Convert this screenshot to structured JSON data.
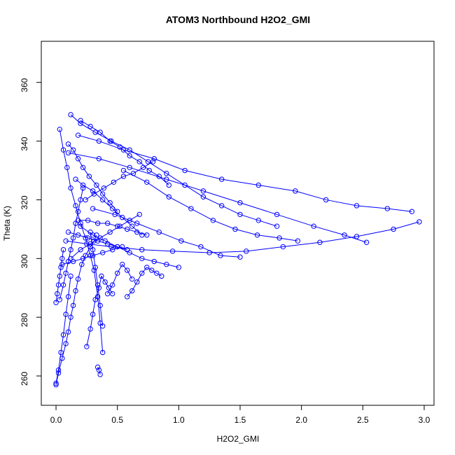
{
  "chart_data": {
    "type": "scatter",
    "title": "ATOM3 Northbound H2O2_GMI",
    "xlabel": "H2O2_GMI",
    "ylabel": "Theta (K)",
    "xlim": [
      -0.12,
      3.08
    ],
    "ylim": [
      250,
      374
    ],
    "x_ticks": [
      0.0,
      0.5,
      1.0,
      1.5,
      2.0,
      2.5,
      3.0
    ],
    "x_tick_labels": [
      "0.0",
      "0.5",
      "1.0",
      "1.5",
      "2.0",
      "2.5",
      "3.0"
    ],
    "y_ticks": [
      260,
      280,
      300,
      320,
      340,
      360
    ],
    "y_tick_labels": [
      "260",
      "280",
      "300",
      "320",
      "340",
      "360"
    ],
    "grid": false,
    "legend": "none",
    "colors": {
      "series": "#0000ff",
      "axes": "#000000",
      "background": "#ffffff"
    },
    "series": [
      {
        "x": [
          0.0,
          0.02,
          0.05,
          0.08,
          0.1,
          0.12,
          0.14,
          0.16,
          0.18,
          0.21,
          0.24,
          0.28,
          0.31,
          0.33
        ],
        "y": [
          257.0,
          261.0,
          266.0,
          271.0,
          275.0,
          280.0,
          284.0,
          289.0,
          293.0,
          298.0,
          301.0,
          304.0,
          306.0,
          308.0
        ]
      },
      {
        "x": [
          0.03,
          0.06,
          0.09,
          0.12,
          0.16,
          0.2,
          0.24,
          0.28,
          0.31,
          0.34,
          0.36,
          0.38
        ],
        "y": [
          344.0,
          337.0,
          331.0,
          324.0,
          318.0,
          312.0,
          307.0,
          301.0,
          296.0,
          287.0,
          278.0,
          268.0
        ]
      },
      {
        "x": [
          0.12,
          0.2,
          0.32,
          0.45,
          0.6,
          0.75,
          0.9,
          1.05,
          1.2,
          1.35,
          1.5,
          1.65,
          1.8
        ],
        "y": [
          349.0,
          346.0,
          343.0,
          340.0,
          337.0,
          333.0,
          329.0,
          325.0,
          321.0,
          318.0,
          315.0,
          313.0,
          311.0
        ]
      },
      {
        "x": [
          0.18,
          0.35,
          0.55,
          0.8,
          1.05,
          1.35,
          1.65,
          1.95,
          2.2,
          2.45,
          2.7,
          2.9
        ],
        "y": [
          342.0,
          340.0,
          337.0,
          334.0,
          330.0,
          327.0,
          325.0,
          323.0,
          320.0,
          318.0,
          317.0,
          316.0
        ]
      },
      {
        "x": [
          0.08,
          0.25,
          0.45,
          0.7,
          0.95,
          1.25,
          1.55,
          1.85,
          2.15,
          2.45,
          2.75,
          2.96
        ],
        "y": [
          306.0,
          305.0,
          304.0,
          303.0,
          302.5,
          302.0,
          302.5,
          304.0,
          305.5,
          307.5,
          310.0,
          312.5
        ]
      },
      {
        "x": [
          0.1,
          0.35,
          0.6,
          0.9,
          1.2,
          1.5,
          1.8,
          2.1,
          2.35,
          2.53
        ],
        "y": [
          336.0,
          334.0,
          331.0,
          327.0,
          323.0,
          319.0,
          315.0,
          311.0,
          308.0,
          305.5
        ]
      },
      {
        "x": [
          0.3,
          0.48,
          0.66,
          0.84,
          1.02,
          1.18,
          1.34,
          1.5
        ],
        "y": [
          317.0,
          315.0,
          312.0,
          309.0,
          306.0,
          304.0,
          301.0,
          300.5
        ]
      },
      {
        "x": [
          0.55,
          0.74,
          0.92,
          1.1,
          1.28,
          1.46,
          1.64,
          1.82,
          1.97
        ],
        "y": [
          330.0,
          326.0,
          321.0,
          317.0,
          313.0,
          310.0,
          308.0,
          307.0,
          306.0
        ]
      },
      {
        "x": [
          0.03,
          0.06,
          0.08,
          0.1,
          0.12,
          0.14,
          0.16,
          0.18,
          0.2,
          0.22
        ],
        "y": [
          286.0,
          291.0,
          295.0,
          299.0,
          303.0,
          307.0,
          312.0,
          316.0,
          320.0,
          324.0
        ]
      },
      {
        "x": [
          0.25,
          0.28,
          0.3,
          0.32,
          0.35,
          0.37,
          0.4,
          0.43,
          0.46
        ],
        "y": [
          270.0,
          276.0,
          281.0,
          286.0,
          290.0,
          294.0,
          292.0,
          290.0,
          288.0
        ]
      },
      {
        "x": [
          0.42,
          0.46,
          0.5,
          0.54,
          0.58,
          0.62
        ],
        "y": [
          288.0,
          291.0,
          295.0,
          298.0,
          296.0,
          293.0
        ]
      },
      {
        "x": [
          0.58,
          0.62,
          0.66,
          0.7,
          0.74,
          0.78,
          0.82,
          0.86
        ],
        "y": [
          287.0,
          289.0,
          292.0,
          295.0,
          297.0,
          296.0,
          295.0,
          294.0
        ]
      },
      {
        "x": [
          0.16,
          0.22,
          0.3,
          0.38,
          0.46,
          0.54,
          0.62,
          0.7
        ],
        "y": [
          327.0,
          325.0,
          323.0,
          320.0,
          317.0,
          314.0,
          311.0,
          308.0
        ]
      },
      {
        "x": [
          0.2,
          0.28,
          0.36,
          0.44,
          0.52,
          0.6,
          0.68,
          0.76,
          0.84,
          0.92
        ],
        "y": [
          347.0,
          345.0,
          343.0,
          340.0,
          338.0,
          335.0,
          333.0,
          330.0,
          328.0,
          325.0
        ]
      },
      {
        "x": [
          0.0,
          0.02,
          0.04,
          0.06,
          0.08,
          0.1,
          0.12
        ],
        "y": [
          257.5,
          262.0,
          268.0,
          274.0,
          281.0,
          287.0,
          294.0
        ]
      },
      {
        "x": [
          0.1,
          0.18,
          0.26,
          0.34,
          0.42,
          0.5,
          0.58
        ],
        "y": [
          309.0,
          308.0,
          307.0,
          306.0,
          305.0,
          304.0,
          303.0
        ]
      },
      {
        "x": [
          0.18,
          0.26,
          0.34,
          0.42,
          0.5,
          0.58,
          0.66,
          0.74
        ],
        "y": [
          313.0,
          313.0,
          312.0,
          312.0,
          311.0,
          310.0,
          309.0,
          308.0
        ]
      },
      {
        "x": [
          0.05,
          0.14,
          0.22,
          0.3,
          0.38,
          0.46,
          0.54
        ],
        "y": [
          298.0,
          299.0,
          300.0,
          301.0,
          302.0,
          303.0,
          304.0
        ]
      },
      {
        "x": [
          0.12,
          0.2,
          0.28,
          0.36,
          0.44,
          0.52,
          0.6,
          0.68
        ],
        "y": [
          300.0,
          303.0,
          305.0,
          307.0,
          309.0,
          311.0,
          313.0,
          315.0
        ]
      },
      {
        "x": [
          0.24,
          0.31,
          0.39,
          0.47,
          0.55,
          0.63,
          0.71,
          0.79
        ],
        "y": [
          320.0,
          322.0,
          324.0,
          326.0,
          328.0,
          329.0,
          331.0,
          333.0
        ]
      },
      {
        "x": [
          0.1,
          0.14,
          0.18,
          0.22,
          0.27,
          0.33,
          0.38,
          0.44,
          0.5
        ],
        "y": [
          339.0,
          337.0,
          334.0,
          331.0,
          328.0,
          325.0,
          322.0,
          319.0,
          316.0
        ]
      },
      {
        "x": [
          0.2,
          0.3,
          0.4,
          0.5,
          0.6,
          0.7,
          0.8,
          0.9,
          1.0
        ],
        "y": [
          311.0,
          308.0,
          306.0,
          304.0,
          302.0,
          300.0,
          299.0,
          298.0,
          297.0
        ]
      },
      {
        "x": [
          0.0,
          0.01,
          0.02,
          0.03,
          0.04,
          0.05,
          0.06
        ],
        "y": [
          285.0,
          288.0,
          291.0,
          294.0,
          297.0,
          300.0,
          303.0
        ]
      },
      {
        "x": [
          0.28,
          0.3,
          0.32,
          0.34,
          0.36,
          0.38
        ],
        "y": [
          309.0,
          303.0,
          297.0,
          291.0,
          284.0,
          277.0
        ]
      },
      {
        "x": [
          0.34,
          0.35,
          0.36
        ],
        "y": [
          263.0,
          262.0,
          260.5
        ]
      }
    ]
  }
}
